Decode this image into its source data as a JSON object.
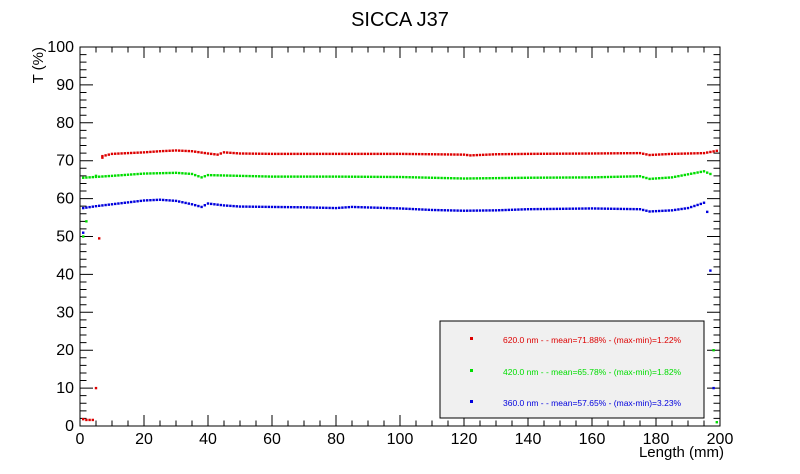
{
  "chart_data": {
    "type": "scatter",
    "title": "SICCA J37",
    "xlabel": "Length (mm)",
    "ylabel": "T (%)",
    "xlim": [
      0,
      200
    ],
    "ylim": [
      0,
      100
    ],
    "x_ticks": [
      0,
      20,
      40,
      60,
      80,
      100,
      120,
      140,
      160,
      180,
      200
    ],
    "y_ticks": [
      0,
      10,
      20,
      30,
      40,
      50,
      60,
      70,
      80,
      90,
      100
    ],
    "grid": false,
    "legend_position": "bottom-right",
    "series": [
      {
        "name": "620.0 nm -  - mean=71.88% - (max-min)=1.22%",
        "color": "#dd0000",
        "edge_points": [
          [
            1,
            1.8
          ],
          [
            2,
            1.6
          ],
          [
            3,
            1.6
          ],
          [
            4,
            1.6
          ],
          [
            5,
            10
          ],
          [
            6,
            49.5
          ],
          [
            7,
            70.8
          ]
        ],
        "baseline": [
          [
            7,
            71.2
          ],
          [
            10,
            71.8
          ],
          [
            15,
            72.0
          ],
          [
            20,
            72.2
          ],
          [
            25,
            72.5
          ],
          [
            30,
            72.7
          ],
          [
            35,
            72.5
          ],
          [
            40,
            71.9
          ],
          [
            43,
            71.6
          ],
          [
            45,
            72.2
          ],
          [
            50,
            71.9
          ],
          [
            60,
            71.8
          ],
          [
            80,
            71.8
          ],
          [
            100,
            71.8
          ],
          [
            120,
            71.6
          ],
          [
            122,
            71.4
          ],
          [
            130,
            71.7
          ],
          [
            140,
            71.8
          ],
          [
            160,
            71.9
          ],
          [
            175,
            72.0
          ],
          [
            178,
            71.5
          ],
          [
            185,
            71.8
          ],
          [
            195,
            72.0
          ],
          [
            199,
            72.6
          ]
        ]
      },
      {
        "name": "420.0 nm -  - mean=65.78% - (max-min)=1.82%",
        "color": "#00dd00",
        "edge_points": [
          [
            1,
            50
          ],
          [
            2,
            54
          ],
          [
            5,
            66
          ],
          [
            198,
            20
          ],
          [
            199,
            1
          ]
        ],
        "baseline": [
          [
            1,
            65.5
          ],
          [
            10,
            66.0
          ],
          [
            20,
            66.6
          ],
          [
            30,
            66.8
          ],
          [
            35,
            66.5
          ],
          [
            38,
            65.6
          ],
          [
            40,
            66.2
          ],
          [
            50,
            66.0
          ],
          [
            60,
            65.8
          ],
          [
            80,
            65.8
          ],
          [
            100,
            65.7
          ],
          [
            120,
            65.3
          ],
          [
            140,
            65.5
          ],
          [
            160,
            65.6
          ],
          [
            175,
            65.9
          ],
          [
            178,
            65.2
          ],
          [
            185,
            65.6
          ],
          [
            190,
            66.4
          ],
          [
            195,
            67.2
          ],
          [
            197,
            66.5
          ]
        ]
      },
      {
        "name": "360.0 nm -  - mean=57.65% - (max-min)=3.23%",
        "color": "#0000dd",
        "edge_points": [
          [
            1,
            51
          ],
          [
            196,
            56.5
          ],
          [
            197,
            41
          ],
          [
            198,
            10
          ]
        ],
        "baseline": [
          [
            1,
            57.5
          ],
          [
            5,
            58.0
          ],
          [
            10,
            58.5
          ],
          [
            20,
            59.5
          ],
          [
            25,
            59.7
          ],
          [
            30,
            59.4
          ],
          [
            35,
            58.5
          ],
          [
            38,
            57.8
          ],
          [
            40,
            58.7
          ],
          [
            45,
            58.2
          ],
          [
            50,
            57.9
          ],
          [
            60,
            57.8
          ],
          [
            70,
            57.7
          ],
          [
            80,
            57.5
          ],
          [
            85,
            57.8
          ],
          [
            100,
            57.4
          ],
          [
            110,
            57.0
          ],
          [
            120,
            56.8
          ],
          [
            130,
            56.9
          ],
          [
            140,
            57.2
          ],
          [
            160,
            57.4
          ],
          [
            175,
            57.2
          ],
          [
            178,
            56.6
          ],
          [
            185,
            56.9
          ],
          [
            190,
            57.5
          ],
          [
            194,
            58.6
          ],
          [
            195,
            58.9
          ]
        ]
      }
    ]
  }
}
